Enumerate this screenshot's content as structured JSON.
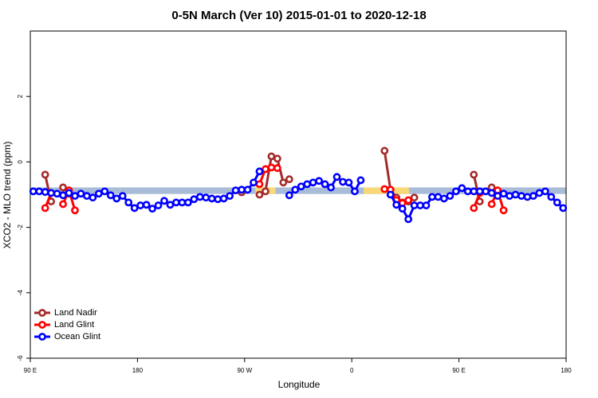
{
  "chart_data": {
    "type": "line",
    "title": "0-5N March (Ver 10)   2015-01-01 to 2020-12-18",
    "x_label": "Longitude",
    "y_label": "XCO2 - MLO trend (ppm)",
    "xlim": [
      90,
      540
    ],
    "xticks": [
      {
        "value": 90,
        "label": "90 E"
      },
      {
        "value": 180,
        "label": "180"
      },
      {
        "value": 270,
        "label": "90 W"
      },
      {
        "value": 360,
        "label": "0"
      },
      {
        "value": 450,
        "label": "90 E"
      },
      {
        "value": 540,
        "label": "180"
      }
    ],
    "ylim": [
      -6,
      4
    ],
    "yticks": [
      -6,
      -4,
      -2,
      0,
      2
    ],
    "legend": "bottom-left",
    "band": {
      "ylim": [
        -0.98,
        -0.78
      ],
      "color": "#a8bcd8",
      "highlights": [
        {
          "xlim": [
            279,
            296
          ],
          "color": "#f8d878"
        },
        {
          "xlim": [
            370,
            408
          ],
          "color": "#f8d878"
        }
      ]
    },
    "x": [
      92.5,
      97.5,
      102.5,
      107.5,
      112.5,
      117.5,
      122.5,
      127.5,
      132.5,
      137.5,
      142.5,
      147.5,
      152.5,
      157.5,
      162.5,
      167.5,
      172.5,
      177.5,
      182.5,
      187.5,
      192.5,
      197.5,
      202.5,
      207.5,
      212.5,
      217.5,
      222.5,
      227.5,
      232.5,
      237.5,
      242.5,
      247.5,
      252.5,
      257.5,
      262.5,
      267.5,
      272.5,
      277.5,
      282.5,
      287.5,
      292.5,
      297.5,
      302.5,
      307.5,
      312.5,
      317.5,
      322.5,
      327.5,
      332.5,
      337.5,
      342.5,
      347.5,
      352.5,
      357.5,
      362.5,
      367.5,
      372.5,
      377.5,
      382.5,
      387.5,
      392.5,
      397.5,
      402.5,
      407.5,
      412.5,
      417.5,
      422.5,
      427.5,
      432.5,
      437.5,
      442.5,
      447.5,
      452.5,
      457.5,
      462.5,
      467.5,
      472.5,
      477.5,
      482.5,
      487.5,
      492.5,
      497.5,
      502.5,
      507.5,
      512.5,
      517.5,
      522.5,
      527.5,
      532.5,
      537.5
    ],
    "series": [
      {
        "name": "Land Nadir",
        "color": "#a52a2a",
        "values": [
          null,
          null,
          -0.39,
          -1.21,
          null,
          -0.78,
          -0.97,
          null,
          null,
          null,
          null,
          null,
          null,
          null,
          null,
          null,
          null,
          null,
          null,
          null,
          null,
          null,
          null,
          null,
          null,
          null,
          null,
          null,
          null,
          null,
          null,
          null,
          null,
          null,
          null,
          -0.93,
          null,
          null,
          -1,
          -0.9,
          0.17,
          0.1,
          -0.63,
          -0.53,
          null,
          null,
          null,
          null,
          null,
          null,
          null,
          null,
          null,
          null,
          null,
          null,
          null,
          null,
          null,
          0.34,
          -0.85,
          -1.09,
          -1.24,
          -1.21,
          -1.09,
          null,
          null,
          null,
          null,
          null,
          null,
          null,
          null,
          null,
          -0.39,
          -1.21,
          null,
          -0.78,
          -0.97,
          null,
          null,
          null,
          null,
          null,
          null,
          null,
          null,
          null,
          null,
          null
        ]
      },
      {
        "name": "Land Glint",
        "color": "#ff0000",
        "values": [
          null,
          null,
          -1.41,
          -0.95,
          null,
          -1.29,
          -0.87,
          -1.48,
          null,
          null,
          null,
          null,
          null,
          null,
          null,
          null,
          null,
          null,
          null,
          null,
          null,
          null,
          null,
          null,
          null,
          null,
          null,
          null,
          null,
          null,
          null,
          null,
          null,
          null,
          null,
          null,
          null,
          null,
          -0.68,
          -0.22,
          -0.17,
          -0.19,
          null,
          null,
          null,
          null,
          null,
          null,
          null,
          null,
          null,
          null,
          null,
          null,
          null,
          null,
          null,
          null,
          null,
          -0.83,
          -0.85,
          -1.17,
          -1.26,
          -1.17,
          null,
          null,
          null,
          null,
          null,
          null,
          null,
          null,
          null,
          null,
          -1.41,
          -0.95,
          null,
          -1.29,
          -0.87,
          -1.48,
          null,
          null,
          null,
          null,
          null,
          null,
          null,
          null,
          null,
          null
        ]
      },
      {
        "name": "Ocean Glint",
        "color": "#0000ff",
        "values": [
          -0.9,
          -0.9,
          -0.92,
          -0.95,
          -0.97,
          -1.02,
          -0.95,
          -1.04,
          -0.97,
          -1.04,
          -1.09,
          -0.97,
          -0.9,
          -1.02,
          -1.12,
          -1.04,
          -1.24,
          -1.41,
          -1.33,
          -1.31,
          -1.43,
          -1.33,
          -1.19,
          -1.31,
          -1.24,
          -1.24,
          -1.24,
          -1.14,
          -1.07,
          -1.09,
          -1.12,
          -1.14,
          -1.12,
          -1.04,
          -0.87,
          -0.85,
          -0.85,
          -0.63,
          -0.29,
          null,
          null,
          null,
          null,
          -1.02,
          -0.85,
          -0.75,
          -0.68,
          -0.63,
          -0.58,
          -0.68,
          -0.78,
          -0.46,
          -0.61,
          -0.63,
          -0.9,
          -0.56,
          null,
          null,
          null,
          null,
          -1,
          -1.31,
          -1.43,
          -1.75,
          -1.33,
          -1.33,
          -1.33,
          -1.07,
          -1.07,
          -1.12,
          -1.04,
          -0.9,
          -0.8,
          -0.9,
          -0.9,
          -0.9,
          -0.9,
          -0.95,
          -1.04,
          -0.97,
          -1.04,
          -1,
          -1.04,
          -1.07,
          -1.04,
          -0.95,
          -0.9,
          -1.07,
          -1.24,
          -1.41
        ]
      }
    ]
  }
}
